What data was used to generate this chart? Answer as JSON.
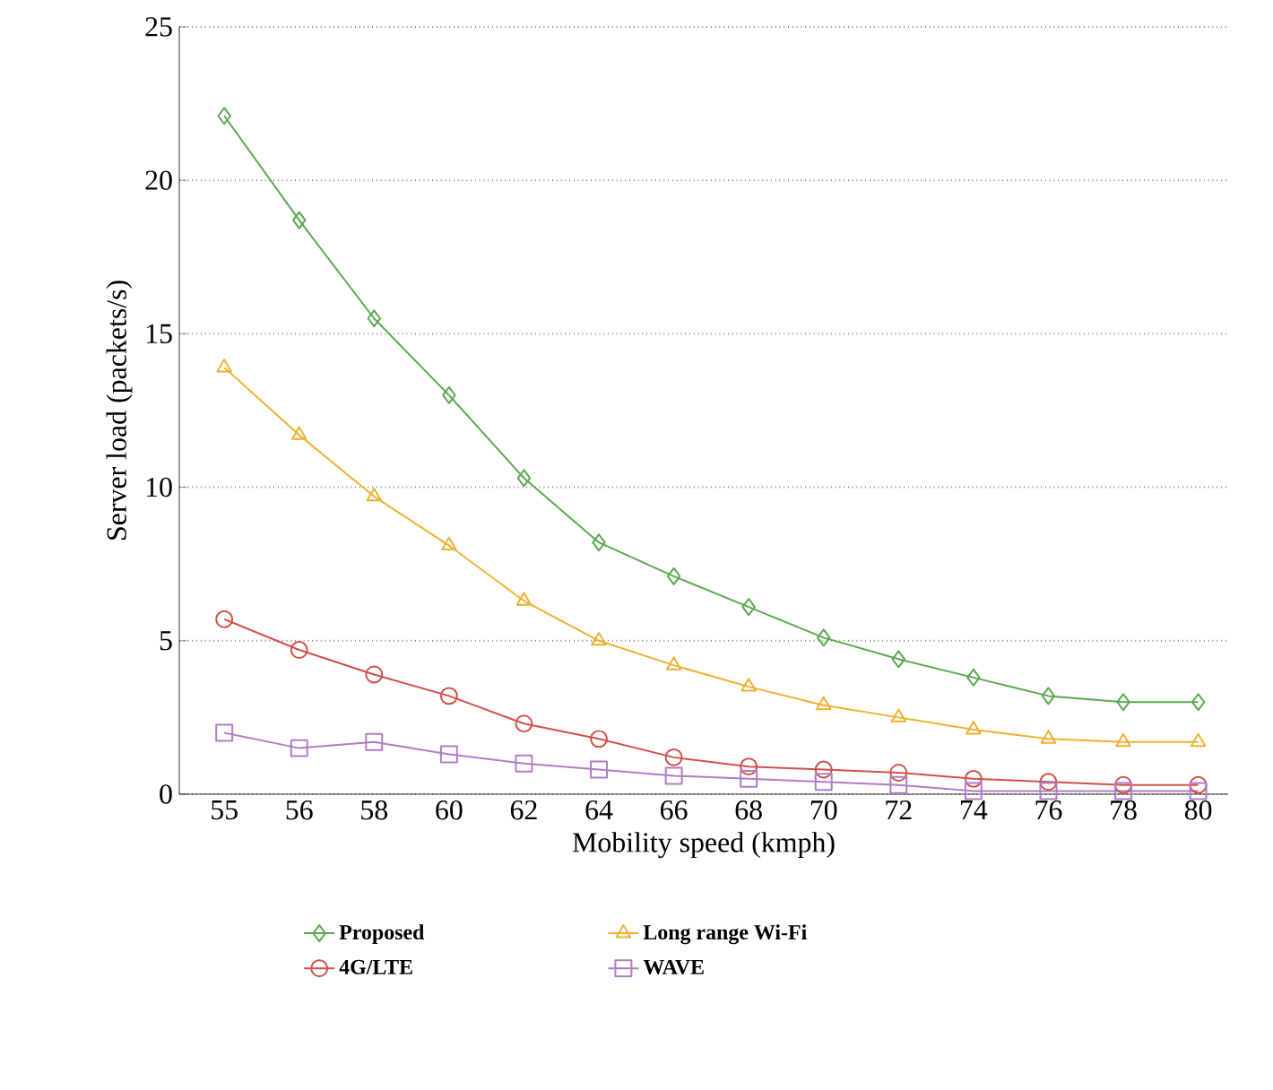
{
  "chart_data": {
    "type": "line",
    "xlabel": "Mobility speed (kmph)",
    "ylabel": "Server load (packets/s)",
    "categories": [
      "55",
      "56",
      "58",
      "60",
      "62",
      "64",
      "66",
      "68",
      "70",
      "72",
      "74",
      "76",
      "78",
      "80"
    ],
    "ylim": [
      0,
      25
    ],
    "yticks": [
      0,
      5,
      10,
      15,
      20,
      25
    ],
    "grid": "y",
    "legend": "bottom",
    "line_style": "solid",
    "series": [
      {
        "name": "Proposed",
        "color": "#5aa84f",
        "marker": "diamond",
        "values": [
          22.1,
          18.7,
          15.5,
          13.0,
          10.3,
          8.2,
          7.1,
          6.1,
          5.1,
          4.4,
          3.8,
          3.2,
          3.0,
          3.0
        ]
      },
      {
        "name": "Long range Wi-Fi",
        "color": "#f0b030",
        "marker": "triangle",
        "values": [
          13.9,
          11.7,
          9.7,
          8.1,
          6.3,
          5.0,
          4.2,
          3.5,
          2.9,
          2.5,
          2.1,
          1.8,
          1.7,
          1.7
        ]
      },
      {
        "name": "4G/LTE",
        "color": "#d0504a",
        "marker": "circle",
        "values": [
          5.7,
          4.7,
          3.9,
          3.2,
          2.3,
          1.8,
          1.2,
          0.9,
          0.8,
          0.7,
          0.5,
          0.4,
          0.3,
          0.3
        ]
      },
      {
        "name": "WAVE",
        "color": "#b07cc6",
        "marker": "square",
        "values": [
          2.0,
          1.5,
          1.7,
          1.3,
          1.0,
          0.8,
          0.6,
          0.5,
          0.4,
          0.3,
          0.1,
          0.1,
          0.1,
          0.1
        ]
      }
    ]
  }
}
